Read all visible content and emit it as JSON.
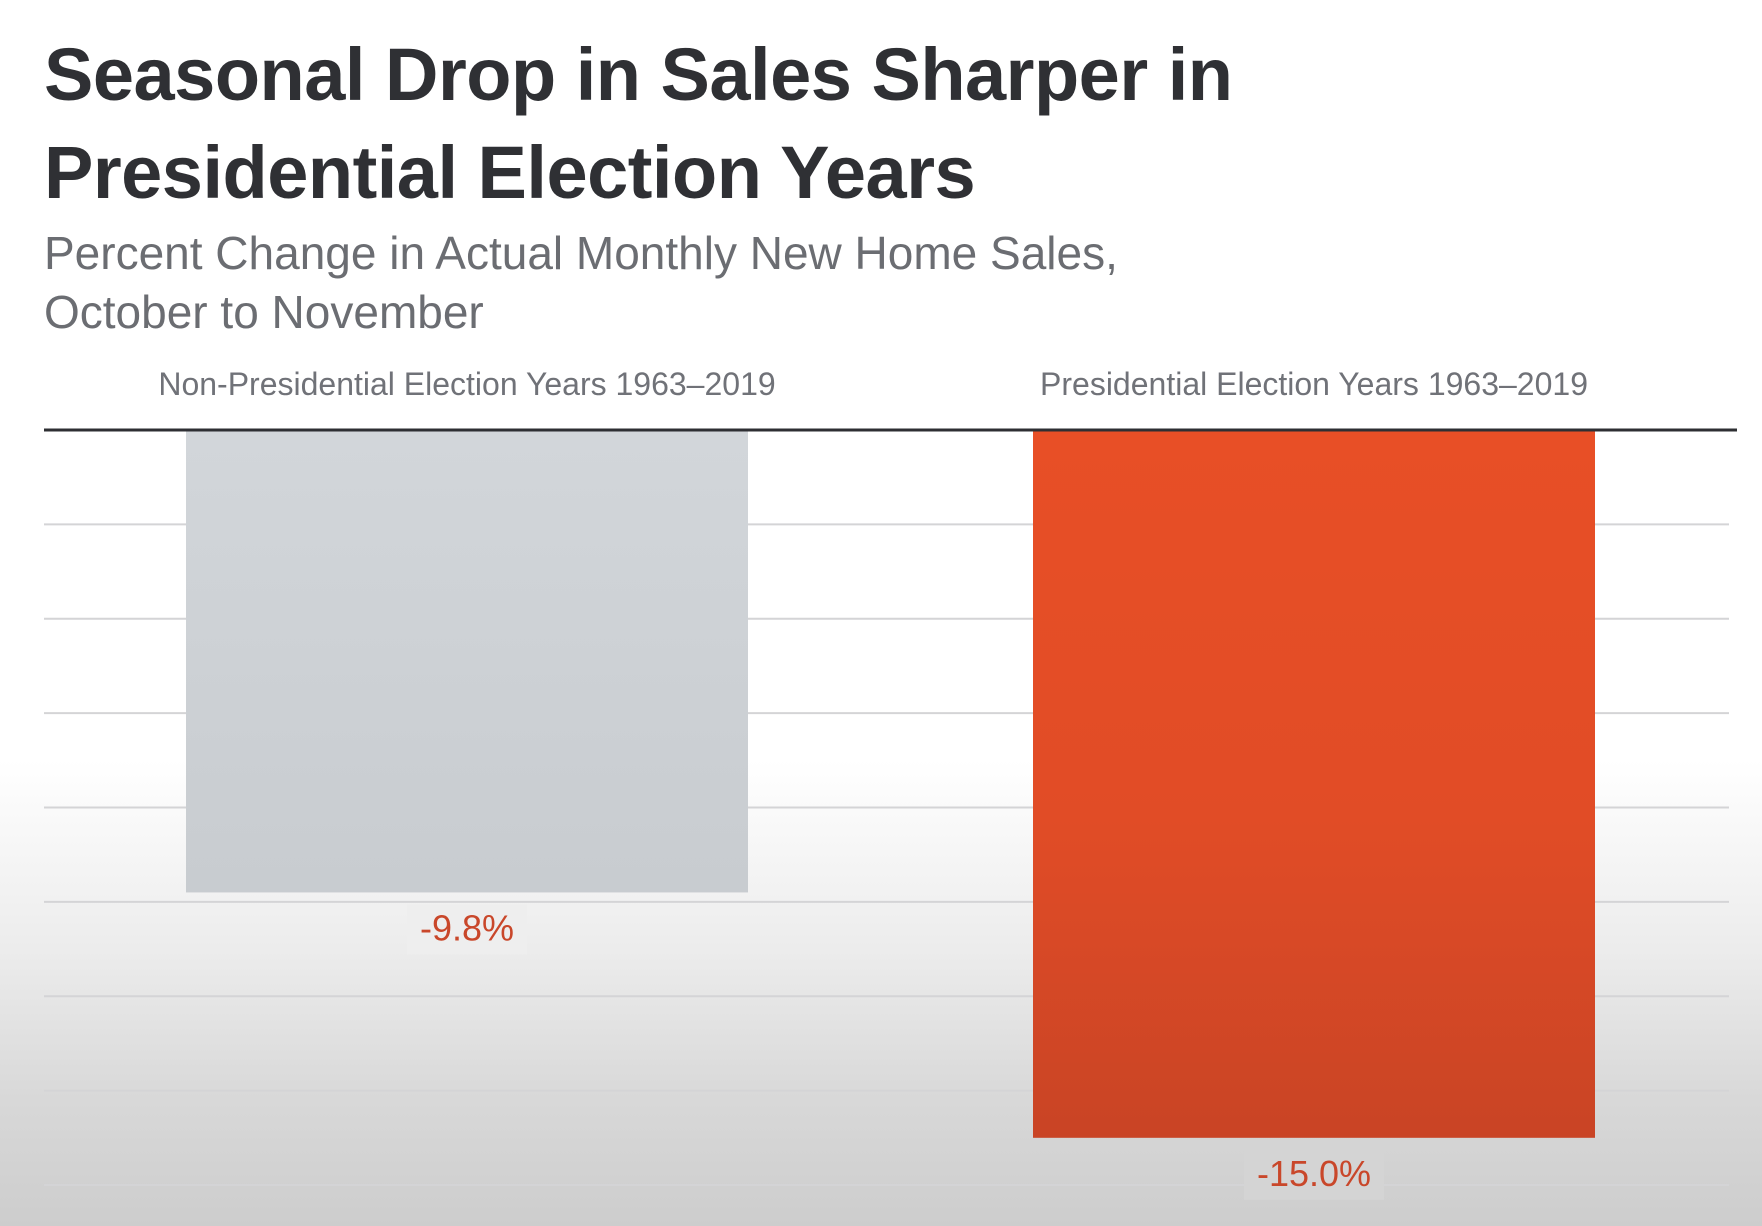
{
  "chart_data": {
    "type": "bar",
    "title": "Seasonal Drop in Sales Sharper in Presidential Election Years",
    "title_lines": [
      "Seasonal Drop in Sales Sharper in",
      "Presidential Election Years"
    ],
    "subtitle": "Percent Change in Actual Monthly New Home Sales, October to November",
    "subtitle_lines": [
      "Percent Change in Actual Monthly New Home Sales,",
      "October to November"
    ],
    "categories": [
      "Non-Presidential Election Years 1963–2019",
      "Presidential Election Years 1963–2019"
    ],
    "values": [
      -9.8,
      -15.0
    ],
    "data_labels": [
      "-9.8%",
      "-15.0%"
    ],
    "bar_colors": [
      "#ccd0d4",
      "#e54e27"
    ],
    "label_color": "#c9472a",
    "xlabel": "",
    "ylabel": "",
    "ylim": [
      -16,
      0
    ],
    "grid_step": 2,
    "grid": true,
    "axis_labels_shown": false,
    "category_label_position": "top",
    "legend": "none"
  }
}
